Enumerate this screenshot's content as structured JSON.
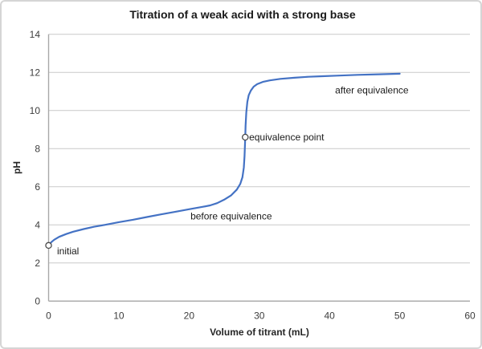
{
  "chart_data": {
    "type": "line",
    "title": "Titration of a weak acid with a strong base",
    "xlabel": "Volume of titrant (mL)",
    "ylabel": "pH",
    "xlim": [
      0,
      60
    ],
    "ylim": [
      0,
      14
    ],
    "x_ticks": [
      0,
      10,
      20,
      30,
      40,
      50,
      60
    ],
    "y_ticks": [
      0,
      2,
      4,
      6,
      8,
      10,
      12,
      14
    ],
    "grid": "horizontal-only",
    "legend": "none",
    "series": [
      {
        "name": "titration-curve",
        "points": [
          [
            0,
            2.92
          ],
          [
            0.4,
            3.1
          ],
          [
            0.8,
            3.22
          ],
          [
            1.5,
            3.37
          ],
          [
            2.5,
            3.52
          ],
          [
            3.5,
            3.64
          ],
          [
            5,
            3.78
          ],
          [
            6.5,
            3.9
          ],
          [
            8,
            4.0
          ],
          [
            10,
            4.14
          ],
          [
            12,
            4.27
          ],
          [
            14,
            4.41
          ],
          [
            16,
            4.55
          ],
          [
            18,
            4.68
          ],
          [
            20,
            4.82
          ],
          [
            22,
            4.95
          ],
          [
            23,
            5.02
          ],
          [
            24,
            5.14
          ],
          [
            25,
            5.32
          ],
          [
            26,
            5.55
          ],
          [
            26.8,
            5.85
          ],
          [
            27.3,
            6.15
          ],
          [
            27.6,
            6.5
          ],
          [
            27.8,
            7.0
          ],
          [
            27.9,
            7.6
          ],
          [
            28.0,
            8.6
          ],
          [
            28.05,
            9.2
          ],
          [
            28.15,
            9.9
          ],
          [
            28.3,
            10.45
          ],
          [
            28.5,
            10.8
          ],
          [
            28.8,
            11.05
          ],
          [
            29.2,
            11.25
          ],
          [
            29.7,
            11.38
          ],
          [
            30.5,
            11.5
          ],
          [
            31.5,
            11.58
          ],
          [
            33,
            11.66
          ],
          [
            35,
            11.72
          ],
          [
            37,
            11.77
          ],
          [
            39,
            11.8
          ],
          [
            41,
            11.83
          ],
          [
            44,
            11.87
          ],
          [
            47,
            11.9
          ],
          [
            50,
            11.93
          ]
        ]
      }
    ],
    "point_markers": [
      {
        "name": "initial-point",
        "x": 0,
        "y": 2.92
      },
      {
        "name": "equivalence-point",
        "x": 28.0,
        "y": 8.6
      }
    ],
    "annotations": [
      {
        "name": "initial",
        "text": "initial",
        "x": 1.2,
        "y": 2.63
      },
      {
        "name": "before-equivalence",
        "text": "before equivalence",
        "x": 20.2,
        "y": 4.47
      },
      {
        "name": "equivalence-point",
        "text": "equivalence point",
        "x": 28.55,
        "y": 8.6
      },
      {
        "name": "after-equivalence",
        "text": "after equivalence",
        "x": 40.8,
        "y": 11.08
      }
    ],
    "colors": {
      "line": "#4472C4",
      "grid": "#c9c9c9",
      "axis": "#a8a8a8",
      "marker_fill": "#ffffff",
      "marker_stroke": "#4a4a4a",
      "frame_border": "#d5d5d5",
      "background": "#ffffff"
    }
  }
}
